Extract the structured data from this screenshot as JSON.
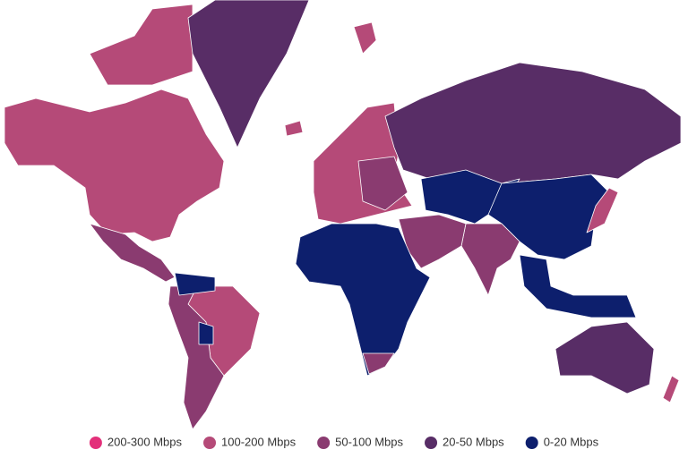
{
  "legend": [
    {
      "label": "200-300 Mbps",
      "color": "#e3307a"
    },
    {
      "label": "100-200 Mbps",
      "color": "#b54a78"
    },
    {
      "label": "50-100 Mbps",
      "color": "#8a3b70"
    },
    {
      "label": "20-50 Mbps",
      "color": "#582d66"
    },
    {
      "label": "0-20 Mbps",
      "color": "#0d1f6d"
    }
  ]
}
